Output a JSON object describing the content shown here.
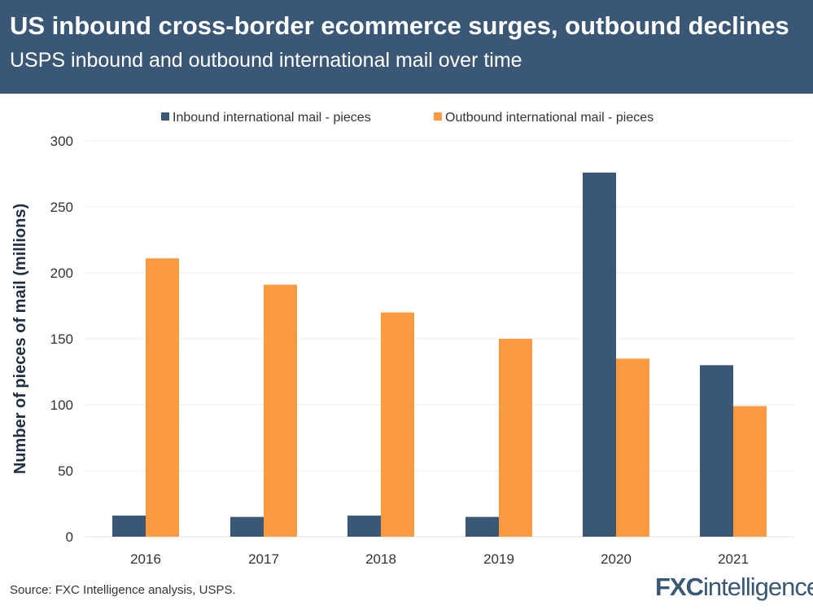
{
  "header": {
    "title": "US inbound cross-border ecommerce surges, outbound declines",
    "subtitle": "USPS inbound and outbound international mail over time"
  },
  "footer": {
    "source": "Source: FXC Intelligence analysis, USPS.",
    "logo": "FXCintelligence"
  },
  "chart_data": {
    "type": "bar",
    "categories": [
      "2016",
      "2017",
      "2018",
      "2019",
      "2020",
      "2021"
    ],
    "series": [
      {
        "name": "Inbound international mail - pieces",
        "color": "#3a5876",
        "values": [
          16,
          15,
          16,
          15,
          276,
          130
        ]
      },
      {
        "name": "Outbound international mail - pieces",
        "color": "#fb9a40",
        "values": [
          211,
          191,
          170,
          150,
          135,
          99
        ]
      }
    ],
    "ylabel": "Number of pieces of mail (millions)",
    "ylim": [
      0,
      300
    ],
    "yticks": [
      "0",
      "50",
      "100",
      "150",
      "200",
      "250",
      "300"
    ],
    "grid": true,
    "legend": "top"
  }
}
